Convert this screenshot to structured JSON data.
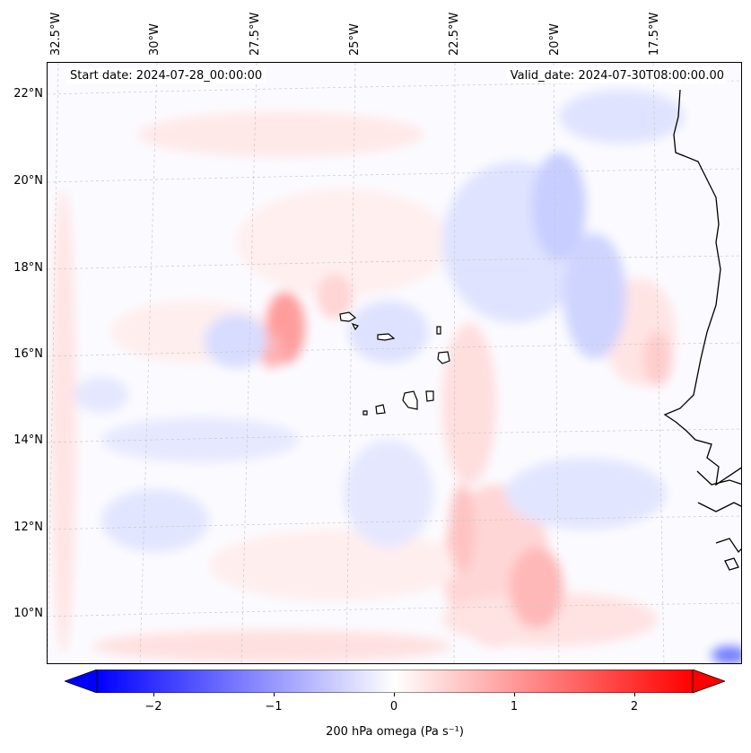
{
  "map": {
    "start_label": "Start date: 2024-07-28_00:00:00",
    "valid_label": "Valid_date: 2024-07-30T08:00:00.00",
    "lat_labels": [
      "22°N",
      "20°N",
      "18°N",
      "16°N",
      "14°N",
      "12°N",
      "10°N"
    ],
    "lon_labels": [
      "32.5°W",
      "30°W",
      "27.5°W",
      "25°W",
      "22.5°W",
      "20°W",
      "17.5°W"
    ],
    "latitudes": [
      22,
      20,
      18,
      16,
      14,
      12,
      10
    ],
    "longitudes": [
      -32.5,
      -30,
      -27.5,
      -25,
      -22.5,
      -20,
      -17.5
    ],
    "gridlines": true
  },
  "colorbar": {
    "ticks": [
      "−2",
      "−1",
      "0",
      "1",
      "2"
    ],
    "tick_values": [
      -2,
      -1,
      0,
      1,
      2
    ],
    "range": [
      -2.5,
      2.5
    ],
    "label": "200 hPa omega (Pa s⁻¹)",
    "extend": "both",
    "colormap": "bwr",
    "color_min": "#0000ff",
    "color_mid": "#ffffff",
    "color_max": "#ff0000"
  },
  "field": {
    "variable": "omega",
    "level": "200 hPa"
  }
}
